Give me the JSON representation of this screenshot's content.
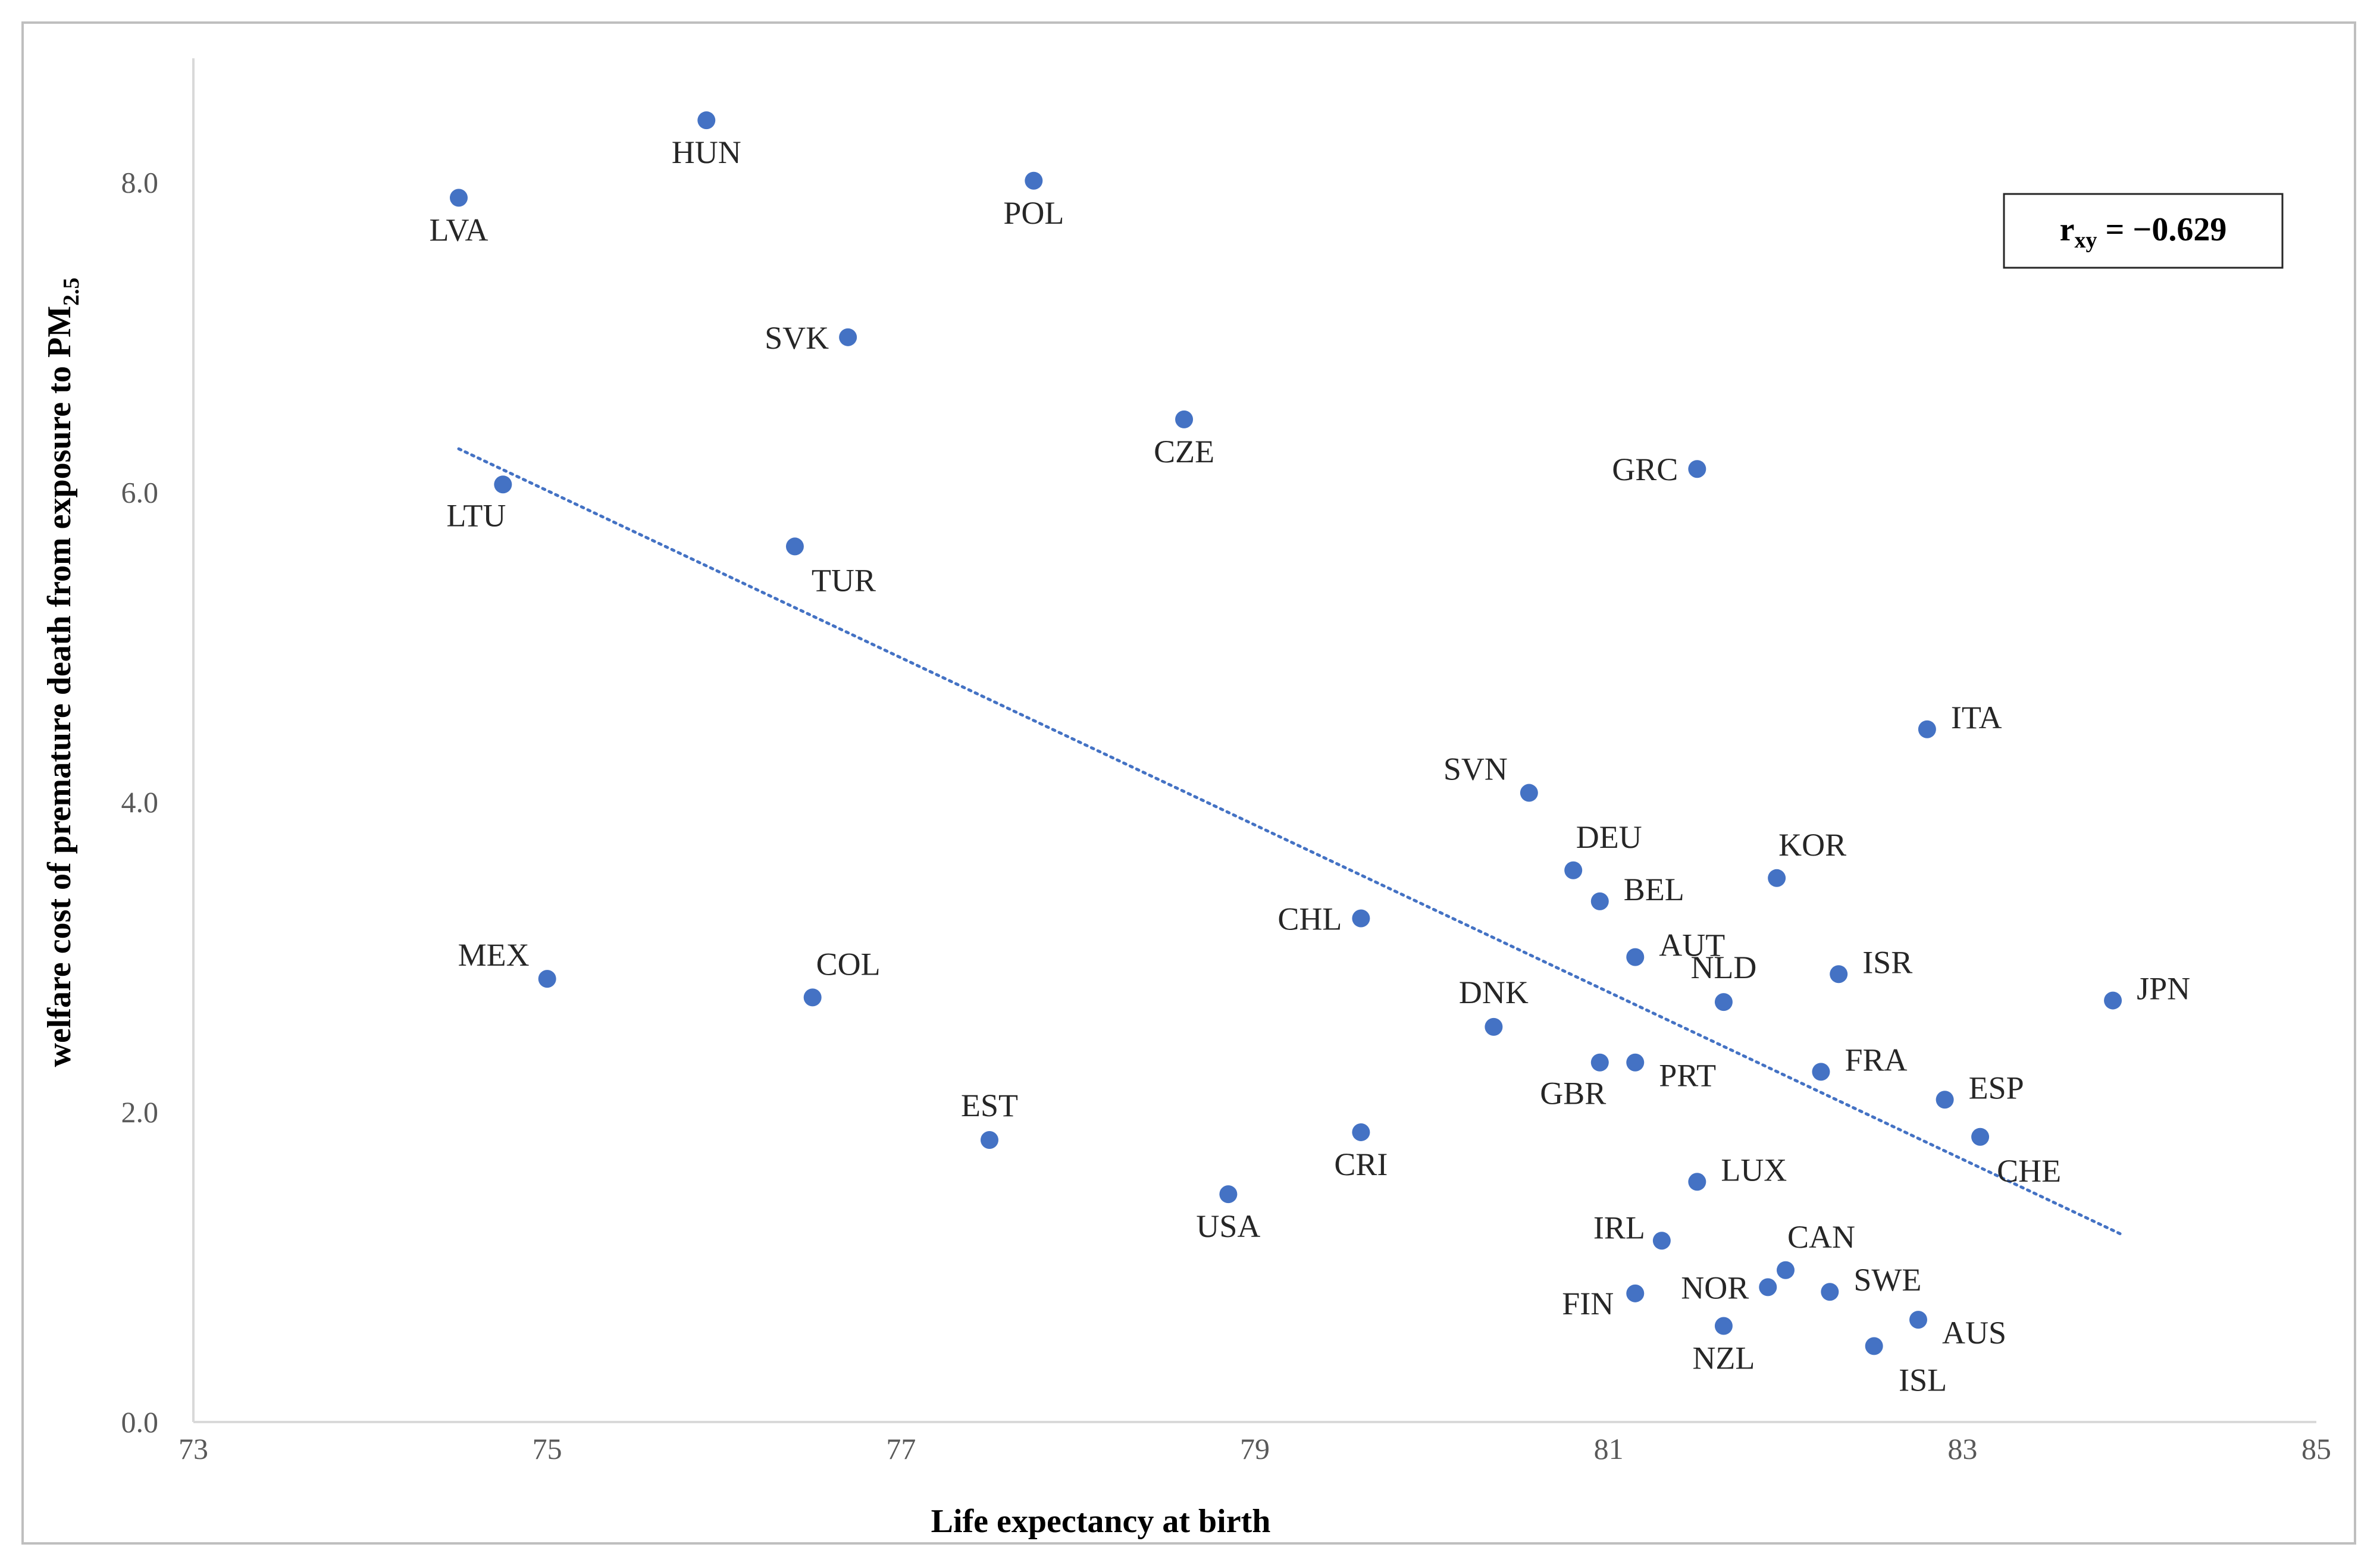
{
  "chart_data": {
    "type": "scatter",
    "title": "",
    "xlabel": "Life expectancy at birth",
    "ylabel": {
      "main": "welfare cost of premature death from exposure to PM",
      "subscript": "2.5"
    },
    "xlim": [
      73,
      85
    ],
    "ylim": [
      0,
      8.8
    ],
    "x_ticks": [
      "73",
      "75",
      "77",
      "79",
      "81",
      "83",
      "85"
    ],
    "y_ticks": [
      "0.0",
      "2.0",
      "4.0",
      "6.0",
      "8.0"
    ],
    "grid": false,
    "annotation": {
      "symbol": "r",
      "subscript": "xy",
      "value": "= −0.629"
    },
    "trendline": {
      "style": "dotted",
      "x": [
        74.5,
        83.9
      ],
      "y": [
        6.28,
        1.21
      ]
    },
    "marker_color": "#4472c4",
    "points": [
      {
        "label": "LVA",
        "x": 74.5,
        "y": 7.9,
        "pos": "below"
      },
      {
        "label": "HUN",
        "x": 75.9,
        "y": 8.4,
        "pos": "below"
      },
      {
        "label": "POL",
        "x": 77.75,
        "y": 8.01,
        "pos": "below"
      },
      {
        "label": "SVK",
        "x": 76.7,
        "y": 7.0,
        "pos": "left"
      },
      {
        "label": "CZE",
        "x": 78.6,
        "y": 6.47,
        "pos": "below"
      },
      {
        "label": "GRC",
        "x": 81.5,
        "y": 6.15,
        "pos": "left"
      },
      {
        "label": "LTU",
        "x": 74.75,
        "y": 6.05,
        "pos": "below-left"
      },
      {
        "label": "TUR",
        "x": 76.4,
        "y": 5.65,
        "pos": "below-right"
      },
      {
        "label": "ITA",
        "x": 82.8,
        "y": 4.47,
        "pos": "right-up"
      },
      {
        "label": "SVN",
        "x": 80.55,
        "y": 4.06,
        "pos": "above-left"
      },
      {
        "label": "DEU",
        "x": 80.8,
        "y": 3.56,
        "pos": "above-right"
      },
      {
        "label": "KOR",
        "x": 81.95,
        "y": 3.51,
        "pos": "above-right"
      },
      {
        "label": "BEL",
        "x": 80.95,
        "y": 3.36,
        "pos": "right-up"
      },
      {
        "label": "CHL",
        "x": 79.6,
        "y": 3.25,
        "pos": "left"
      },
      {
        "label": "AUT",
        "x": 81.15,
        "y": 3.0,
        "pos": "right-up"
      },
      {
        "label": "ISR",
        "x": 82.3,
        "y": 2.89,
        "pos": "right-up"
      },
      {
        "label": "MEX",
        "x": 75.0,
        "y": 2.86,
        "pos": "above-left"
      },
      {
        "label": "COL",
        "x": 76.5,
        "y": 2.74,
        "pos": "above-right"
      },
      {
        "label": "NLD",
        "x": 81.65,
        "y": 2.71,
        "pos": "above"
      },
      {
        "label": "JPN",
        "x": 83.85,
        "y": 2.72,
        "pos": "right-up"
      },
      {
        "label": "DNK",
        "x": 80.35,
        "y": 2.55,
        "pos": "above"
      },
      {
        "label": "GBR",
        "x": 80.95,
        "y": 2.32,
        "pos": "below-left"
      },
      {
        "label": "PRT",
        "x": 81.15,
        "y": 2.32,
        "pos": "right-down"
      },
      {
        "label": "FRA",
        "x": 82.2,
        "y": 2.26,
        "pos": "right-up"
      },
      {
        "label": "ESP",
        "x": 82.9,
        "y": 2.08,
        "pos": "right-up"
      },
      {
        "label": "EST",
        "x": 77.5,
        "y": 1.82,
        "pos": "above"
      },
      {
        "label": "CRI",
        "x": 79.6,
        "y": 1.87,
        "pos": "below"
      },
      {
        "label": "CHE",
        "x": 83.1,
        "y": 1.84,
        "pos": "below-right"
      },
      {
        "label": "LUX",
        "x": 81.5,
        "y": 1.55,
        "pos": "right-up"
      },
      {
        "label": "USA",
        "x": 78.85,
        "y": 1.47,
        "pos": "below"
      },
      {
        "label": "IRL",
        "x": 81.3,
        "y": 1.17,
        "pos": "left-up"
      },
      {
        "label": "CAN",
        "x": 82.0,
        "y": 0.98,
        "pos": "above-right"
      },
      {
        "label": "SWE",
        "x": 82.25,
        "y": 0.84,
        "pos": "right-up"
      },
      {
        "label": "NOR",
        "x": 81.9,
        "y": 0.87,
        "pos": "left"
      },
      {
        "label": "FIN",
        "x": 81.15,
        "y": 0.83,
        "pos": "left-down"
      },
      {
        "label": "AUS",
        "x": 82.75,
        "y": 0.66,
        "pos": "right-down"
      },
      {
        "label": "NZL",
        "x": 81.65,
        "y": 0.62,
        "pos": "below"
      },
      {
        "label": "ISL",
        "x": 82.5,
        "y": 0.49,
        "pos": "below-right"
      }
    ]
  }
}
